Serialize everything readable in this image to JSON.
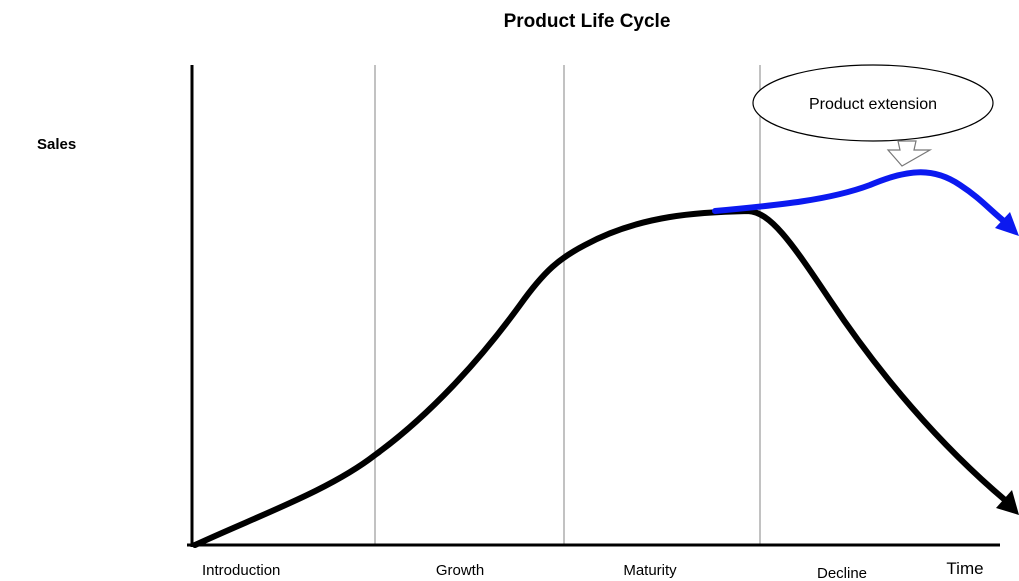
{
  "title": "Product Life Cycle",
  "y_axis_label": "Sales",
  "x_axis_label": "Time",
  "stages": [
    "Introduction",
    "Growth",
    "Maturity",
    "Decline"
  ],
  "callout": "Product extension"
}
